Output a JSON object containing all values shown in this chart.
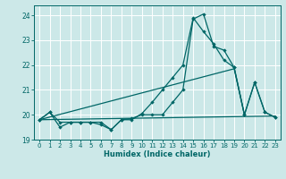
{
  "xlabel": "Humidex (Indice chaleur)",
  "bg_color": "#cce8e8",
  "grid_color": "#b0d8d8",
  "line_color": "#006666",
  "xlim": [
    -0.5,
    23.5
  ],
  "ylim": [
    19.0,
    24.4
  ],
  "yticks": [
    19,
    20,
    21,
    22,
    23,
    24
  ],
  "xticks": [
    0,
    1,
    2,
    3,
    4,
    5,
    6,
    7,
    8,
    9,
    10,
    11,
    12,
    13,
    14,
    15,
    16,
    17,
    18,
    19,
    20,
    21,
    22,
    23
  ],
  "series1_x": [
    0,
    1,
    2,
    3,
    4,
    5,
    6,
    7,
    8,
    9,
    10,
    11,
    12,
    13,
    14,
    15,
    16,
    17,
    18,
    19,
    20,
    21,
    22,
    23
  ],
  "series1_y": [
    19.8,
    20.1,
    19.5,
    19.7,
    19.7,
    19.7,
    19.6,
    19.4,
    19.8,
    19.8,
    20.05,
    20.5,
    21.0,
    21.5,
    22.0,
    23.9,
    23.35,
    22.85,
    22.2,
    21.9,
    20.0,
    21.3,
    20.1,
    19.9
  ],
  "series2_x": [
    0,
    1,
    2,
    3,
    4,
    5,
    6,
    7,
    8,
    9,
    10,
    11,
    12,
    13,
    14,
    15,
    16,
    17,
    18,
    19,
    20,
    21,
    22,
    23
  ],
  "series2_y": [
    19.8,
    20.1,
    19.7,
    19.7,
    19.7,
    19.7,
    19.7,
    19.4,
    19.8,
    19.85,
    20.0,
    20.0,
    20.0,
    20.5,
    21.0,
    23.85,
    24.05,
    22.75,
    22.6,
    21.9,
    20.0,
    21.3,
    20.1,
    19.9
  ],
  "series3_x": [
    0,
    23
  ],
  "series3_y": [
    19.8,
    19.95
  ],
  "series4_x": [
    0,
    19,
    20
  ],
  "series4_y": [
    19.8,
    21.85,
    20.0
  ]
}
